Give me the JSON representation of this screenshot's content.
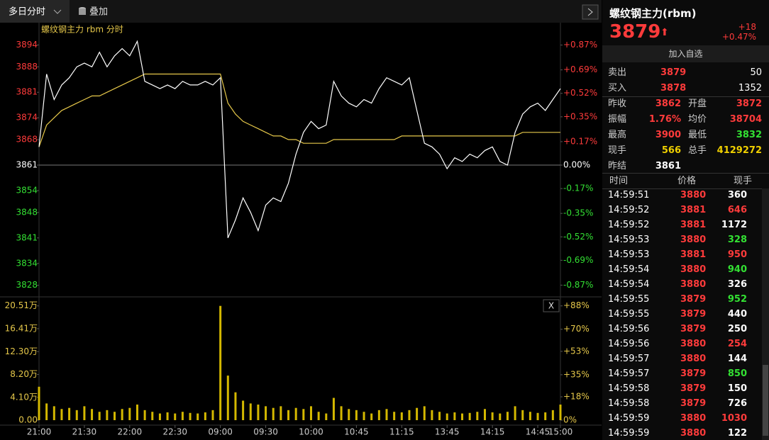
{
  "toolbar": {
    "period": "多日分时",
    "overlay": "叠加"
  },
  "panel": {
    "close": "X"
  },
  "chart_data": [
    {
      "type": "line",
      "title": "螺纹钢主力 rbm 分时",
      "x": [
        0,
        5,
        10,
        15,
        20,
        25,
        30,
        35,
        40,
        45,
        50,
        55,
        60,
        65,
        70,
        75,
        80,
        85,
        90,
        95,
        100,
        105,
        110,
        115,
        120,
        125,
        130,
        135,
        140,
        145,
        150,
        155,
        160,
        165,
        170,
        175,
        180,
        185,
        190,
        195,
        200,
        205,
        210,
        215,
        220,
        225,
        230,
        235,
        240,
        245,
        250,
        255,
        260,
        265,
        270,
        275,
        280,
        285,
        290,
        295,
        300,
        305,
        310,
        315,
        320,
        325,
        330,
        335,
        340,
        345
      ],
      "series": [
        {
          "color": "#ffffff",
          "values": [
            3866,
            3886,
            3879,
            3883,
            3885,
            3888,
            3889,
            3888,
            3892,
            3888,
            3891,
            3893,
            3891,
            3895,
            3884,
            3883,
            3882,
            3883,
            3882,
            3884,
            3883,
            3883,
            3884,
            3883,
            3885,
            3841,
            3846,
            3852,
            3848,
            3843,
            3850,
            3852,
            3851,
            3856,
            3864,
            3870,
            3873,
            3871,
            3872,
            3884,
            3880,
            3878,
            3877,
            3879,
            3878,
            3882,
            3885,
            3884,
            3883,
            3885,
            3876,
            3867,
            3866,
            3864,
            3860,
            3863,
            3862,
            3864,
            3863,
            3865,
            3866,
            3862,
            3861,
            3870,
            3875,
            3877,
            3878,
            3876,
            3879,
            3882
          ]
        },
        {
          "color": "#e6c84a",
          "values": [
            3866,
            3872,
            3874,
            3876,
            3877,
            3878,
            3879,
            3880,
            3880,
            3881,
            3882,
            3883,
            3884,
            3885,
            3886,
            3886,
            3886,
            3886,
            3886,
            3886,
            3886,
            3886,
            3886,
            3886,
            3886,
            3878,
            3875,
            3873,
            3872,
            3871,
            3870,
            3869,
            3869,
            3868,
            3868,
            3867,
            3867,
            3867,
            3867,
            3868,
            3868,
            3868,
            3868,
            3868,
            3868,
            3868,
            3868,
            3868,
            3869,
            3869,
            3869,
            3869,
            3869,
            3869,
            3869,
            3869,
            3869,
            3869,
            3869,
            3869,
            3869,
            3869,
            3869,
            3869,
            3870,
            3870,
            3870,
            3870,
            3870,
            3870
          ]
        }
      ],
      "xlim": [
        0,
        345
      ],
      "ylim": [
        3825,
        3897
      ],
      "yticks": [
        3894,
        3888,
        3881,
        3874,
        3868,
        3861,
        3854,
        3848,
        3841,
        3834,
        3828
      ],
      "y2lim": [
        -0.95,
        0.95
      ],
      "y2ticks": [
        {
          "value": 0.87,
          "label": "+0.87%"
        },
        {
          "value": 0.69,
          "label": "+0.69%"
        },
        {
          "value": 0.52,
          "label": "+0.52%"
        },
        {
          "value": 0.35,
          "label": "+0.35%"
        },
        {
          "value": 0.17,
          "label": "+0.17%"
        },
        {
          "value": 0,
          "label": "0.00%"
        },
        {
          "value": -0.17,
          "label": "-0.17%"
        },
        {
          "value": -0.35,
          "label": "-0.35%"
        },
        {
          "value": -0.52,
          "label": "-0.52%"
        },
        {
          "value": -0.69,
          "label": "-0.69%"
        },
        {
          "value": -0.87,
          "label": "-0.87%"
        }
      ]
    },
    {
      "type": "bar",
      "color": "#d4b800",
      "x": [
        0,
        5,
        10,
        15,
        20,
        25,
        30,
        35,
        40,
        45,
        50,
        55,
        60,
        65,
        70,
        75,
        80,
        85,
        90,
        95,
        100,
        105,
        110,
        115,
        120,
        125,
        130,
        135,
        140,
        145,
        150,
        155,
        160,
        165,
        170,
        175,
        180,
        185,
        190,
        195,
        200,
        205,
        210,
        215,
        220,
        225,
        230,
        235,
        240,
        245,
        250,
        255,
        260,
        265,
        270,
        275,
        280,
        285,
        290,
        295,
        300,
        305,
        310,
        315,
        320,
        325,
        330,
        335,
        340,
        345
      ],
      "values": [
        60000,
        30000,
        25000,
        20000,
        22000,
        18000,
        25000,
        20000,
        15000,
        18000,
        15000,
        20000,
        22000,
        28000,
        18000,
        15000,
        12000,
        14000,
        12000,
        15000,
        13000,
        12000,
        14000,
        18000,
        205100,
        80000,
        50000,
        35000,
        30000,
        28000,
        25000,
        22000,
        25000,
        18000,
        22000,
        20000,
        25000,
        15000,
        12000,
        40000,
        25000,
        20000,
        18000,
        15000,
        12000,
        18000,
        20000,
        15000,
        14000,
        18000,
        22000,
        25000,
        18000,
        15000,
        12000,
        14000,
        12000,
        13000,
        15000,
        20000,
        14000,
        12000,
        15000,
        25000,
        18000,
        15000,
        13000,
        14000,
        18000,
        28000
      ],
      "xlim": [
        0,
        345
      ],
      "xticks": [
        {
          "value": 0,
          "label": "21:00"
        },
        {
          "value": 30,
          "label": "21:30"
        },
        {
          "value": 60,
          "label": "22:00"
        },
        {
          "value": 90,
          "label": "22:30"
        },
        {
          "value": 120,
          "label": "09:00"
        },
        {
          "value": 150,
          "label": "09:30"
        },
        {
          "value": 180,
          "label": "10:00"
        },
        {
          "value": 210,
          "label": "10:45"
        },
        {
          "value": 240,
          "label": "11:15"
        },
        {
          "value": 270,
          "label": "13:45"
        },
        {
          "value": 300,
          "label": "14:15"
        },
        {
          "value": 330,
          "label": "14:45"
        },
        {
          "value": 345,
          "label": "15:00"
        }
      ],
      "ylim": [
        0,
        220000
      ],
      "yticks": [
        {
          "value": 205100,
          "label": "20.51万"
        },
        {
          "value": 164100,
          "label": "16.41万"
        },
        {
          "value": 123000,
          "label": "12.30万"
        },
        {
          "value": 82000,
          "label": "8.20万"
        },
        {
          "value": 41000,
          "label": "4.10万"
        },
        {
          "value": 0,
          "label": "0.00"
        }
      ],
      "y2lim": [
        0,
        94.4
      ],
      "y2ticks": [
        {
          "value": 88,
          "label": "+88%"
        },
        {
          "value": 70,
          "label": "+70%"
        },
        {
          "value": 53,
          "label": "+53%"
        },
        {
          "value": 35,
          "label": "+35%"
        },
        {
          "value": 18,
          "label": "+18%"
        },
        {
          "value": 0,
          "label": "0%"
        }
      ]
    }
  ],
  "quote": {
    "name": "螺纹钢主力(rbm)",
    "price": 3879,
    "arrow": "⬆",
    "change": {
      "value": 18,
      "label": "+18"
    },
    "change_pct": {
      "value": 0.47,
      "label": "+0.47%"
    },
    "add": "加入自选",
    "book": [
      {
        "label": "卖出",
        "price": 3879,
        "volume": 50
      },
      {
        "label": "买入",
        "price": 3878,
        "volume": 1352
      }
    ],
    "stats": [
      {
        "label": "昨收",
        "value": 3862,
        "color": "#ff3b3b"
      },
      {
        "label": "开盘",
        "value": 3872,
        "color": "#ff3b3b"
      },
      {
        "label": "振幅",
        "value": {
          "value": 1.76,
          "label": "1.76%"
        },
        "color": "#ff3b3b"
      },
      {
        "label": "均价",
        "value": 38704,
        "color": "#ff3b3b"
      },
      {
        "label": "最高",
        "value": 3900,
        "color": "#ff3b3b"
      },
      {
        "label": "最低",
        "value": 3832,
        "color": "#33e033"
      },
      {
        "label": "现手",
        "value": 566,
        "color": "#f0d000"
      },
      {
        "label": "总手",
        "value": 4129272,
        "color": "#f0d000"
      },
      {
        "label": "昨结",
        "value": 3861,
        "color": "#ffffff"
      }
    ]
  },
  "trades": {
    "header": [
      "时间",
      "价格",
      "现手"
    ],
    "rows": [
      {
        "time": "14:59:51",
        "price": 3880,
        "volume": 360,
        "vcolor": "#ffffff"
      },
      {
        "time": "14:59:52",
        "price": 3881,
        "volume": 646,
        "vcolor": "#ff3b3b"
      },
      {
        "time": "14:59:52",
        "price": 3881,
        "volume": 1172,
        "vcolor": "#ffffff"
      },
      {
        "time": "14:59:53",
        "price": 3880,
        "volume": 328,
        "vcolor": "#33e033"
      },
      {
        "time": "14:59:53",
        "price": 3881,
        "volume": 950,
        "vcolor": "#ff3b3b"
      },
      {
        "time": "14:59:54",
        "price": 3880,
        "volume": 940,
        "vcolor": "#33e033"
      },
      {
        "time": "14:59:54",
        "price": 3880,
        "volume": 326,
        "vcolor": "#ffffff"
      },
      {
        "time": "14:59:55",
        "price": 3879,
        "volume": 952,
        "vcolor": "#33e033"
      },
      {
        "time": "14:59:55",
        "price": 3879,
        "volume": 440,
        "vcolor": "#ffffff"
      },
      {
        "time": "14:59:56",
        "price": 3879,
        "volume": 250,
        "vcolor": "#ffffff"
      },
      {
        "time": "14:59:56",
        "price": 3880,
        "volume": 254,
        "vcolor": "#ff3b3b"
      },
      {
        "time": "14:59:57",
        "price": 3880,
        "volume": 144,
        "vcolor": "#ffffff"
      },
      {
        "time": "14:59:57",
        "price": 3879,
        "volume": 850,
        "vcolor": "#33e033"
      },
      {
        "time": "14:59:58",
        "price": 3879,
        "volume": 150,
        "vcolor": "#ffffff"
      },
      {
        "time": "14:59:58",
        "price": 3879,
        "volume": 726,
        "vcolor": "#ffffff"
      },
      {
        "time": "14:59:59",
        "price": 3880,
        "volume": 1030,
        "vcolor": "#ff3b3b"
      },
      {
        "time": "14:59:59",
        "price": 3880,
        "volume": 122,
        "vcolor": "#ffffff"
      }
    ]
  }
}
